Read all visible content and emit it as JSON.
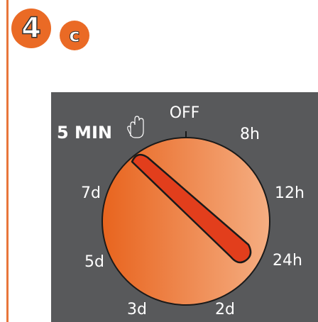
{
  "badge": {
    "number": "4",
    "letter": "c"
  },
  "dial": {
    "preset": "5 MIN",
    "labels": [
      "OFF",
      "8h",
      "12h",
      "24h",
      "2d",
      "3d",
      "5d",
      "7d"
    ]
  }
}
